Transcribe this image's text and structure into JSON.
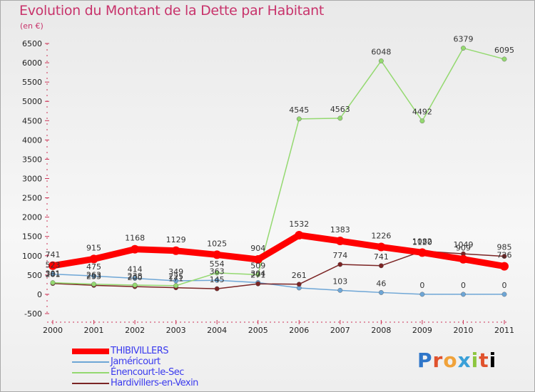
{
  "chart_data": {
    "type": "line",
    "title": "Evolution du Montant de la Dette par Habitant",
    "subtitle": "(en €)",
    "x": [
      "2000",
      "2001",
      "2002",
      "2003",
      "2004",
      "2005",
      "2006",
      "2007",
      "2008",
      "2009",
      "2010",
      "2011"
    ],
    "ylim": [
      -500,
      6500
    ],
    "yticks": [
      -500,
      0,
      500,
      1000,
      1500,
      2000,
      2500,
      3000,
      3500,
      4000,
      4500,
      5000,
      5500,
      6000,
      6500
    ],
    "grid": false,
    "legend_position": "bottom-left",
    "series": [
      {
        "name": "THIBIVILLERS",
        "color": "#ff0000",
        "values": [
          741,
          915,
          1168,
          1129,
          1025,
          904,
          1532,
          1383,
          1226,
          1082,
          909,
          726
        ],
        "labels": [
          "741",
          "915",
          "1168",
          "1129",
          "1025",
          "904",
          "1532",
          "1383",
          "1226",
          "1082",
          "909",
          "726"
        ]
      },
      {
        "name": "Jaméricourt",
        "color": "#6ea6d6",
        "values": [
          523,
          475,
          414,
          349,
          363,
          304,
          165,
          103,
          46,
          0,
          0,
          0
        ],
        "labels": [
          "523",
          "475",
          "414",
          "349",
          "363",
          "304",
          "",
          "103",
          "46",
          "0",
          "0",
          "0"
        ]
      },
      {
        "name": "Énencourt-le-Sec",
        "color": "#94d970",
        "values": [
          301,
          263,
          238,
          225,
          554,
          509,
          4545,
          4563,
          6048,
          4492,
          6379,
          6095
        ],
        "labels": [
          "301",
          "263",
          "238",
          "225",
          "554",
          "509",
          "4545",
          "4563",
          "6048",
          "4492",
          "6379",
          "6095"
        ]
      },
      {
        "name": "Hardivillers-en-Vexin",
        "color": "#7b2424",
        "values": [
          281,
          233,
          200,
          171,
          145,
          271,
          261,
          774,
          741,
          1120,
          1049,
          985
        ],
        "labels": [
          "281",
          "233",
          "200",
          "171",
          "145",
          "271",
          "261",
          "774",
          "741",
          "1120",
          "1049",
          "985"
        ]
      }
    ]
  },
  "logo": {
    "letters": [
      "P",
      "r",
      "o",
      "x",
      "i",
      "t",
      "i"
    ]
  },
  "colors": {
    "title": "#c8336b",
    "legend_text": "#3a3aee"
  }
}
